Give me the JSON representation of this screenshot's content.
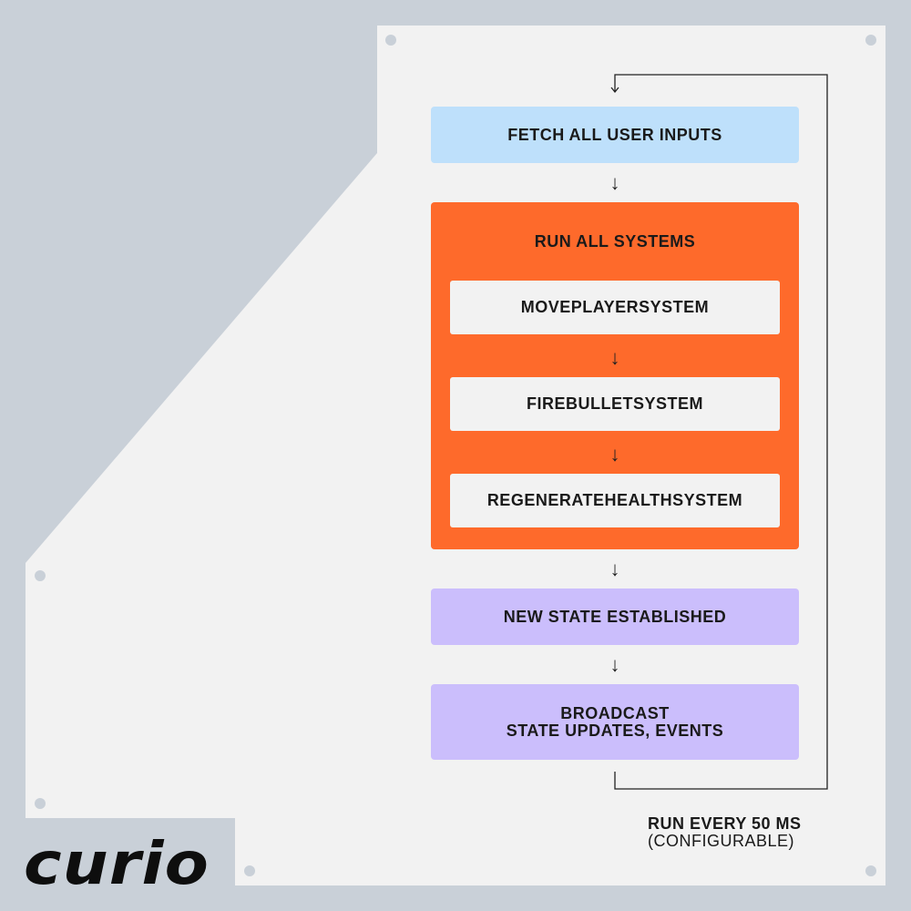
{
  "colors": {
    "background": "#c9d0d8",
    "panel": "#f2f2f2",
    "blue": "#bee0fb",
    "orange": "#fe6a2b",
    "purple": "#cbbefc",
    "text": "#1a1a1a"
  },
  "brand": {
    "logo_text": "curio"
  },
  "steps": {
    "fetch": "FETCH ALL USER INPUTS",
    "run_all": "RUN ALL SYSTEMS",
    "systems": [
      "MOVEPLAYERSYSTEM",
      "FIREBULLETSYSTEM",
      "REGENERATEHEALTHSYSTEM"
    ],
    "new_state": "NEW STATE ESTABLISHED",
    "broadcast_line1": "BROADCAST",
    "broadcast_line2": "STATE UPDATES, EVENTS"
  },
  "arrow_glyph": "↓",
  "loop_note": {
    "line1": "RUN EVERY 50 MS",
    "line2": "(CONFIGURABLE)"
  }
}
